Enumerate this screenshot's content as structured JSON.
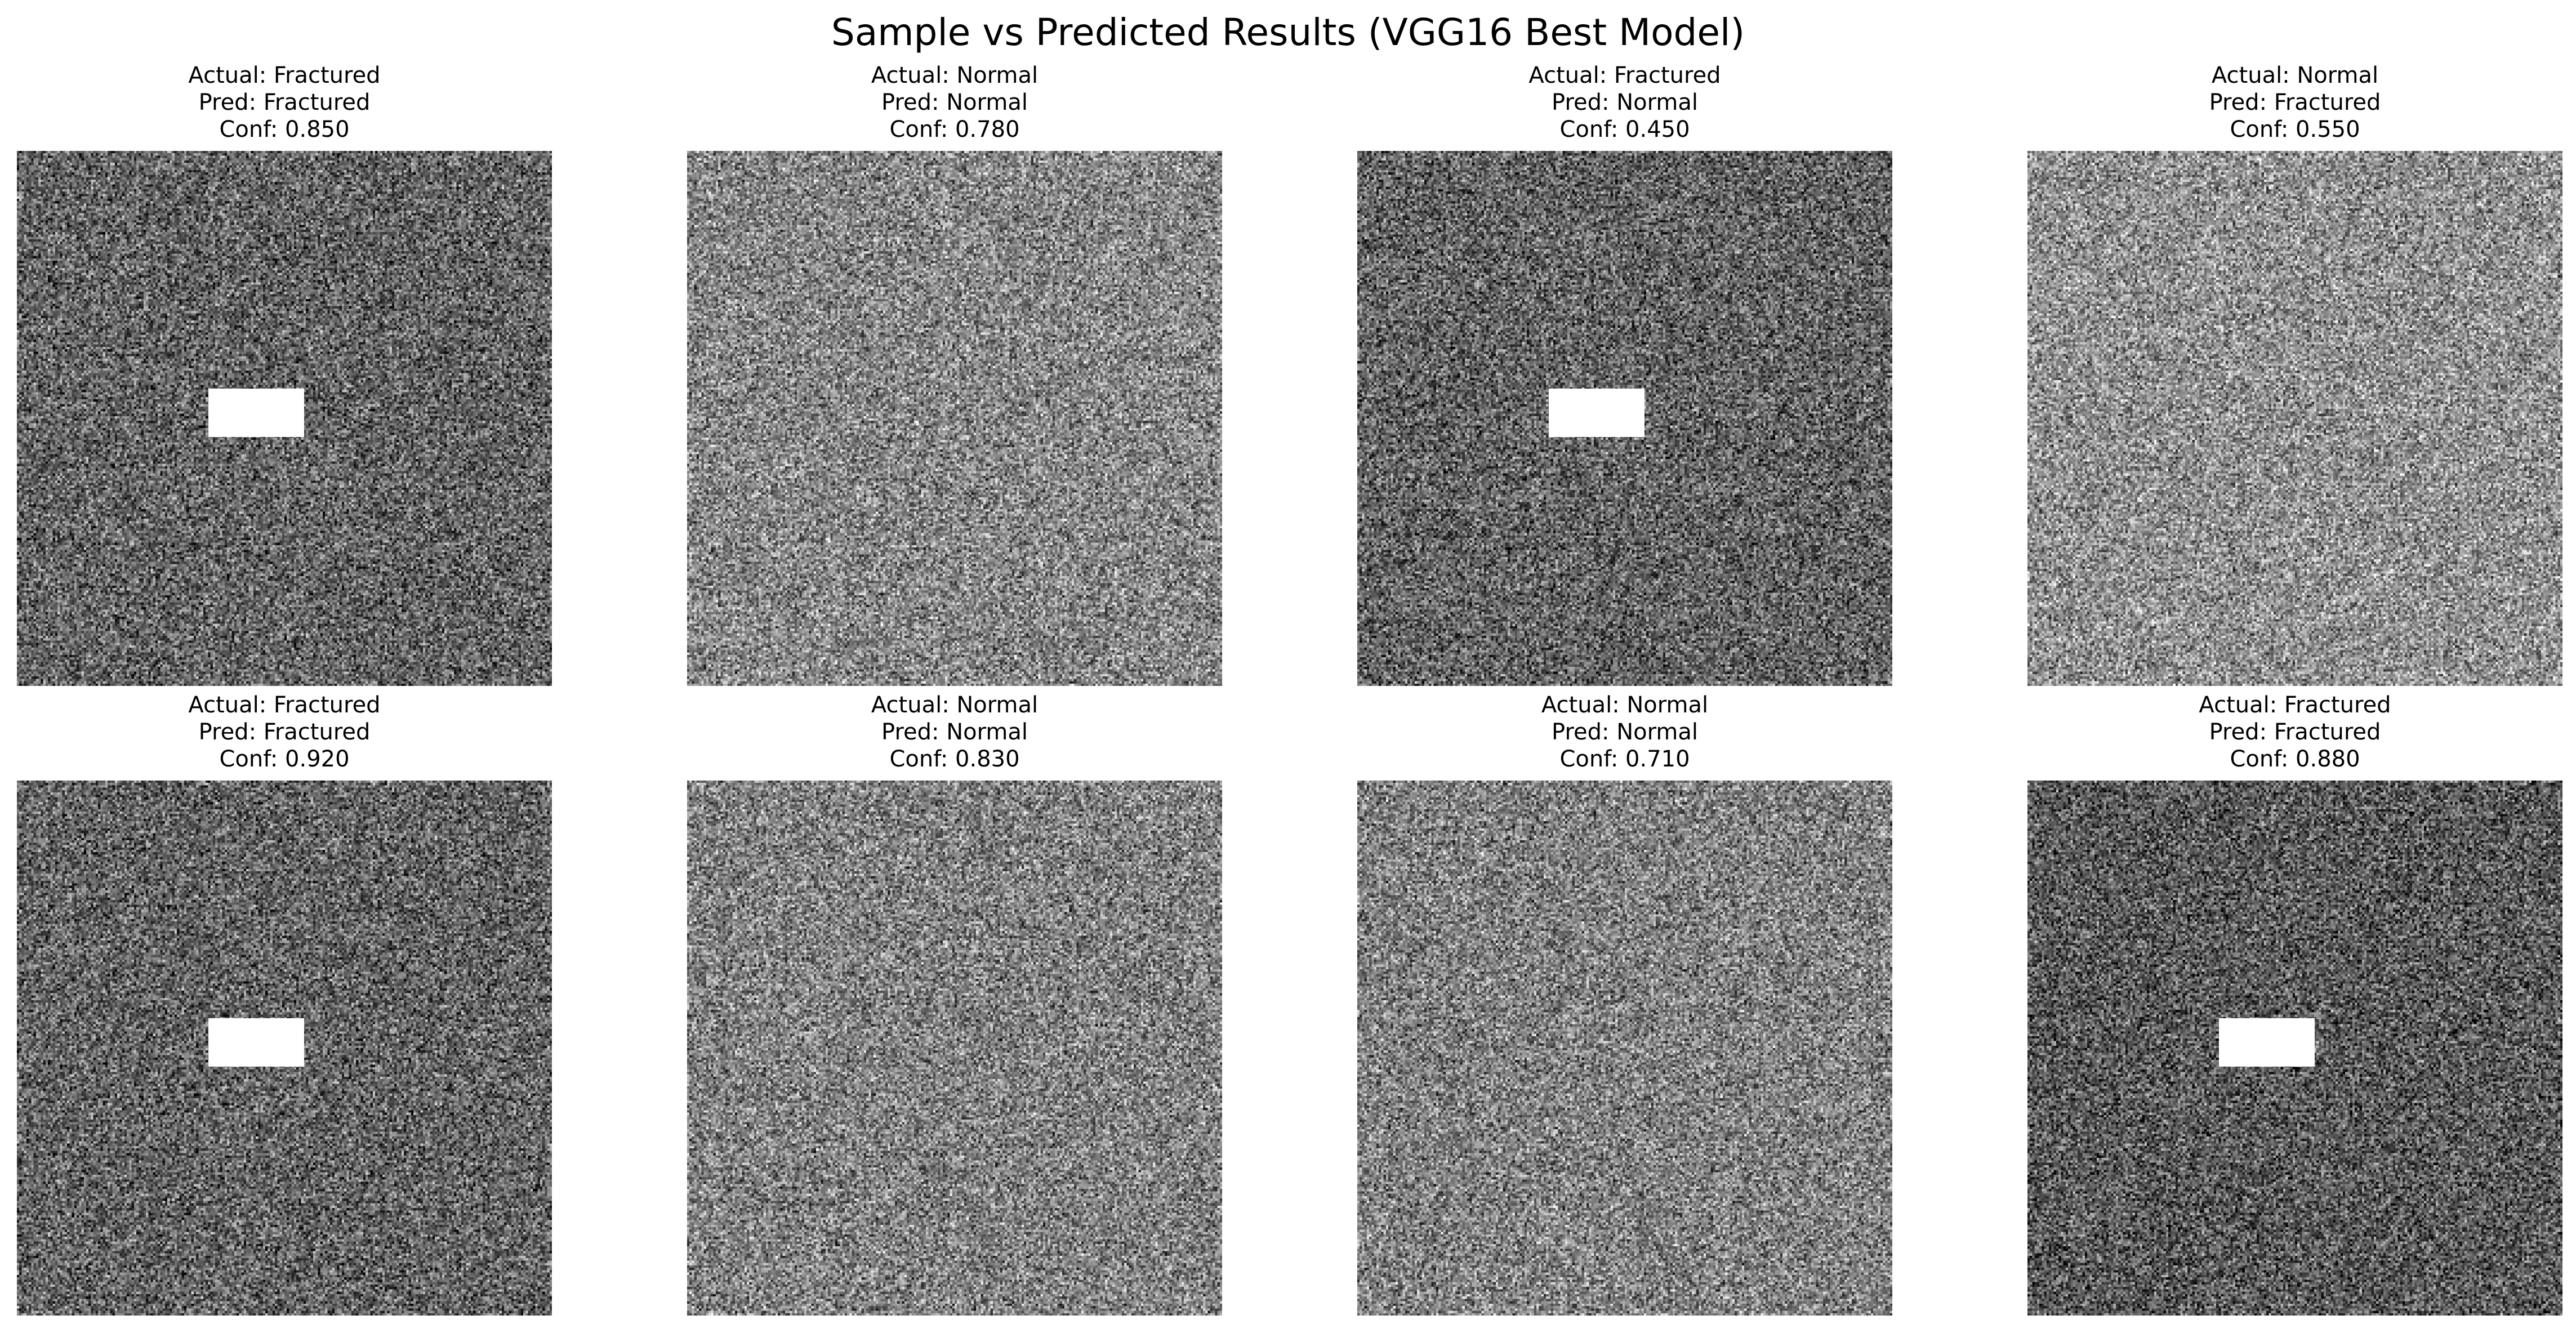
{
  "title": "Sample vs Predicted Results (VGG16 Best Model)",
  "chart_data": {
    "type": "image_grid",
    "title": "Sample vs Predicted Results (VGG16 Best Model)",
    "rows": 2,
    "cols": 4,
    "panels": [
      {
        "actual": "Actual: Fractured",
        "pred": "Pred: Fractured",
        "conf": "Conf: 0.850",
        "actual_value": "Fractured",
        "pred_value": "Fractured",
        "confidence": 0.85,
        "fracture_marker": true,
        "mean_gray": 100
      },
      {
        "actual": "Actual: Normal",
        "pred": "Pred: Normal",
        "conf": "Conf: 0.780",
        "actual_value": "Normal",
        "pred_value": "Normal",
        "confidence": 0.78,
        "fracture_marker": false,
        "mean_gray": 135
      },
      {
        "actual": "Actual: Fractured",
        "pred": "Pred: Normal",
        "conf": "Conf: 0.450",
        "actual_value": "Fractured",
        "pred_value": "Normal",
        "confidence": 0.45,
        "fracture_marker": true,
        "mean_gray": 100
      },
      {
        "actual": "Actual: Normal",
        "pred": "Pred: Fractured",
        "conf": "Conf: 0.550",
        "actual_value": "Normal",
        "pred_value": "Fractured",
        "confidence": 0.55,
        "fracture_marker": false,
        "mean_gray": 145
      },
      {
        "actual": "Actual: Fractured",
        "pred": "Pred: Fractured",
        "conf": "Conf: 0.920",
        "actual_value": "Fractured",
        "pred_value": "Fractured",
        "confidence": 0.92,
        "fracture_marker": true,
        "mean_gray": 100
      },
      {
        "actual": "Actual: Normal",
        "pred": "Pred: Normal",
        "conf": "Conf: 0.830",
        "actual_value": "Normal",
        "pred_value": "Normal",
        "confidence": 0.83,
        "fracture_marker": false,
        "mean_gray": 130
      },
      {
        "actual": "Actual: Normal",
        "pred": "Pred: Normal",
        "conf": "Conf: 0.710",
        "actual_value": "Normal",
        "pred_value": "Normal",
        "confidence": 0.71,
        "fracture_marker": false,
        "mean_gray": 130
      },
      {
        "actual": "Actual: Fractured",
        "pred": "Pred: Fractured",
        "conf": "Conf: 0.880",
        "actual_value": "Fractured",
        "pred_value": "Fractured",
        "confidence": 0.88,
        "fracture_marker": true,
        "mean_gray": 90
      }
    ]
  }
}
